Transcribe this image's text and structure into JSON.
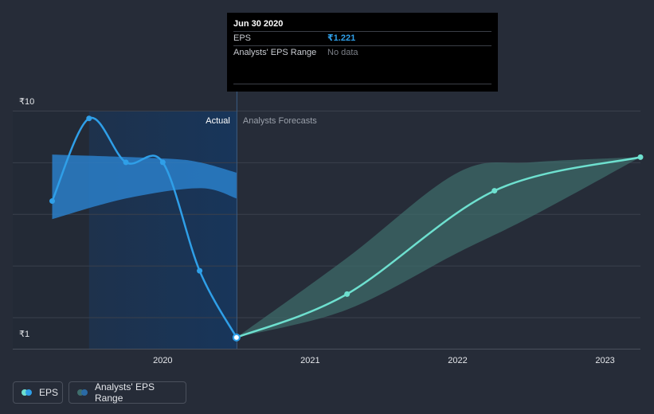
{
  "colors": {
    "background": "#262c38",
    "eps_actual": "#2f9fe8",
    "eps_forecast": "#6ee0cf",
    "range_actual": "#2a7fc9",
    "range_forecast": "#3f6e6c",
    "gridline": "#3a404c"
  },
  "tooltip": {
    "date": "Jun 30 2020",
    "eps_label": "EPS",
    "eps_value": "₹1.221",
    "range_label": "Analysts' EPS Range",
    "range_value": "No data"
  },
  "legend": {
    "eps_label": "EPS",
    "range_label": "Analysts' EPS Range"
  },
  "chart_data": {
    "type": "line",
    "y_unit": "₹",
    "y_ticks": [
      {
        "value": 10,
        "label": "₹10"
      },
      {
        "value": 1,
        "label": "₹1"
      }
    ],
    "ylim": [
      1,
      10
    ],
    "gridlines": [
      10,
      8,
      6,
      4,
      2
    ],
    "x_ticks": [
      {
        "value": 2020,
        "label": "2020"
      },
      {
        "value": 2021,
        "label": "2021"
      },
      {
        "value": 2022,
        "label": "2022"
      },
      {
        "value": 2023,
        "label": "2023"
      }
    ],
    "xlim": [
      2019.15,
      2023.24
    ],
    "region_labels": {
      "actual": "Actual",
      "forecast": "Analysts Forecasts"
    },
    "divider_x": 2020.5,
    "highlight_start": 2019.5,
    "series": [
      {
        "name": "EPS",
        "kind": "actual",
        "points": [
          {
            "x": 2019.25,
            "y": 6.5
          },
          {
            "x": 2019.5,
            "y": 9.7
          },
          {
            "x": 2019.75,
            "y": 8.0
          },
          {
            "x": 2020.0,
            "y": 8.0
          },
          {
            "x": 2020.25,
            "y": 3.8
          },
          {
            "x": 2020.5,
            "y": 1.221
          }
        ]
      },
      {
        "name": "EPS",
        "kind": "forecast",
        "points": [
          {
            "x": 2020.5,
            "y": 1.221
          },
          {
            "x": 2021.25,
            "y": 2.9
          },
          {
            "x": 2022.25,
            "y": 6.9
          },
          {
            "x": 2023.24,
            "y": 8.2
          }
        ]
      }
    ],
    "ranges": [
      {
        "name": "Analysts' EPS Range",
        "kind": "actual",
        "upper": [
          {
            "x": 2019.25,
            "y": 8.3
          },
          {
            "x": 2020.0,
            "y": 8.15
          },
          {
            "x": 2020.25,
            "y": 8.0
          },
          {
            "x": 2020.5,
            "y": 7.6
          }
        ],
        "lower": [
          {
            "x": 2019.25,
            "y": 5.8
          },
          {
            "x": 2019.75,
            "y": 6.6
          },
          {
            "x": 2020.25,
            "y": 7.0
          },
          {
            "x": 2020.5,
            "y": 6.6
          }
        ]
      },
      {
        "name": "Analysts' EPS Range",
        "kind": "forecast",
        "upper": [
          {
            "x": 2020.5,
            "y": 1.221
          },
          {
            "x": 2021.25,
            "y": 4.3
          },
          {
            "x": 2022.0,
            "y": 7.6
          },
          {
            "x": 2022.5,
            "y": 8.0
          },
          {
            "x": 2023.24,
            "y": 8.2
          }
        ],
        "lower": [
          {
            "x": 2020.5,
            "y": 1.221
          },
          {
            "x": 2021.25,
            "y": 2.3
          },
          {
            "x": 2022.0,
            "y": 4.5
          },
          {
            "x": 2022.5,
            "y": 5.9
          },
          {
            "x": 2023.24,
            "y": 8.2
          }
        ]
      }
    ]
  }
}
